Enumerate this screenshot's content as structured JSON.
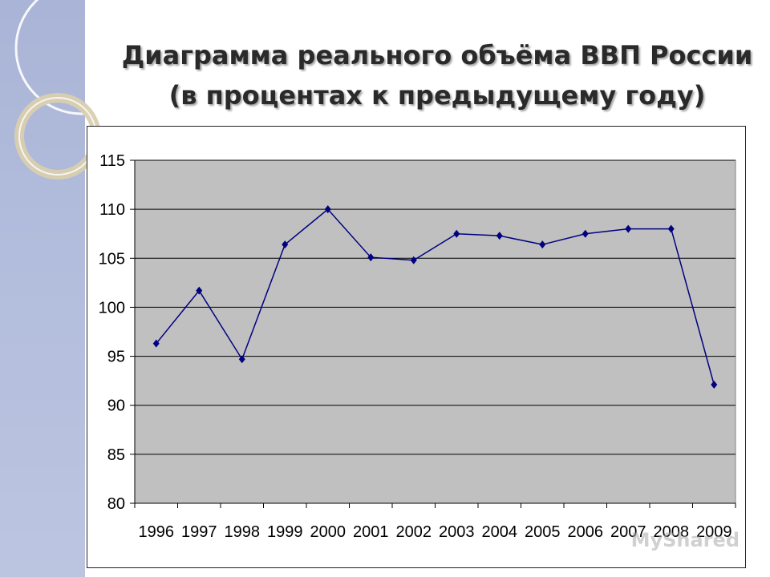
{
  "slide": {
    "title_line1": "Диаграмма реального объёма ВВП России",
    "title_line2": "(в процентах к предыдущему году)",
    "watermark": "MyShared"
  },
  "colors": {
    "sidebar": "#b0bad9",
    "plot_background": "#c0c0c0",
    "series_line": "#000080",
    "gridline": "#000000"
  },
  "chart_data": {
    "type": "line",
    "categories": [
      "1996",
      "1997",
      "1998",
      "1999",
      "2000",
      "2001",
      "2002",
      "2003",
      "2004",
      "2005",
      "2006",
      "2007",
      "2008",
      "2009"
    ],
    "series": [
      {
        "values": [
          96.3,
          101.7,
          94.7,
          106.4,
          110.0,
          105.1,
          104.8,
          107.5,
          107.3,
          106.4,
          107.5,
          108.0,
          108.0,
          92.1
        ]
      }
    ],
    "title": "",
    "xlabel": "",
    "ylabel": "",
    "ylim": [
      80,
      115
    ],
    "yticks": [
      80,
      85,
      90,
      95,
      100,
      105,
      110,
      115
    ],
    "grid": true,
    "marker": "diamond",
    "legend": "none"
  }
}
